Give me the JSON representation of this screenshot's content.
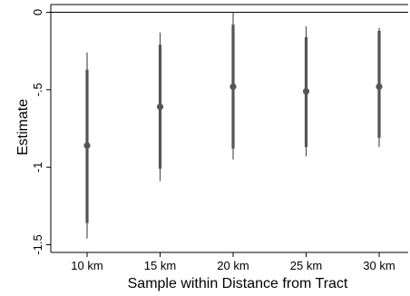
{
  "chart_data": {
    "type": "errorbar",
    "xlabel": "Sample within Distance from Tract",
    "ylabel": "Estimate",
    "categories": [
      "10 km",
      "15 km",
      "20 km",
      "25 km",
      "30 km"
    ],
    "yticks": [
      0,
      -0.5,
      -1,
      -1.5
    ],
    "ytick_labels": [
      "0",
      "-.5",
      "-1",
      "-1.5"
    ],
    "ylim": [
      -1.55,
      0.05
    ],
    "reference_line": 0,
    "grid": false,
    "series": [
      {
        "estimates": [
          -0.86,
          -0.61,
          -0.48,
          -0.51,
          -0.48
        ],
        "ci_inner_low": [
          -1.36,
          -1.01,
          -0.88,
          -0.87,
          -0.81
        ],
        "ci_inner_high": [
          -0.37,
          -0.21,
          -0.08,
          -0.16,
          -0.12
        ],
        "ci_outer_low": [
          -1.46,
          -1.09,
          -0.95,
          -0.93,
          -0.87
        ],
        "ci_outer_high": [
          -0.26,
          -0.13,
          0.0,
          -0.09,
          -0.1
        ]
      }
    ],
    "colors": {
      "marker": "#555555",
      "line": "#555555",
      "axis": "#000000"
    }
  }
}
